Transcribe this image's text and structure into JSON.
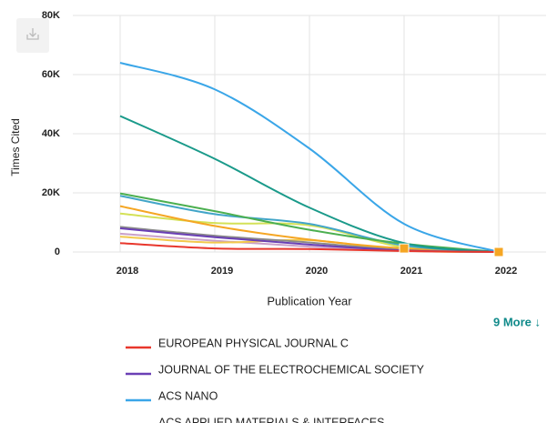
{
  "chart_data": {
    "type": "line",
    "ylabel": "Times Cited",
    "xlabel": "Publication Year",
    "xlim": [
      2017.5,
      2022.5
    ],
    "xticks": [
      2018,
      2019,
      2020,
      2021,
      2022
    ],
    "ylim": [
      0,
      80000
    ],
    "yticks": [
      {
        "value": 0,
        "label": "0"
      },
      {
        "value": 20000,
        "label": "20K"
      },
      {
        "value": 40000,
        "label": "40K"
      },
      {
        "value": 60000,
        "label": "60K"
      },
      {
        "value": 80000,
        "label": "80K"
      }
    ],
    "grid": true,
    "x": [
      2018,
      2019,
      2020,
      2021,
      2022
    ],
    "more_label": "9 More ↓",
    "series": [
      {
        "name": "EUROPEAN PHYSICAL JOURNAL C",
        "color": "#e8372c",
        "values": [
          3000,
          1200,
          1000,
          300,
          0
        ]
      },
      {
        "name": "JOURNAL OF THE ELECTROCHEMICAL SOCIETY",
        "color": "#6a3fb5",
        "values": [
          8000,
          5000,
          2500,
          500,
          0
        ]
      },
      {
        "name": "ACS NANO",
        "color": "#3aa6e8",
        "values": [
          64000,
          55000,
          35000,
          9500,
          0
        ]
      },
      {
        "name": "ACS APPLIED MATERIALS & INTERFACES",
        "color": "#8a8a8a",
        "values": [
          8500,
          5500,
          3200,
          600,
          0
        ]
      },
      {
        "color": "#1a9a8a",
        "values": [
          46000,
          31500,
          15000,
          3000,
          0
        ]
      },
      {
        "color": "#4caf50",
        "values": [
          19800,
          13800,
          7500,
          2800,
          0
        ]
      },
      {
        "color": "#42a5c8",
        "values": [
          19000,
          12800,
          9500,
          2200,
          0
        ]
      },
      {
        "color": "#f5a623",
        "markers": true,
        "values": [
          15500,
          8800,
          4200,
          1200,
          0
        ]
      },
      {
        "color": "#d4e157",
        "values": [
          13000,
          9800,
          9000,
          1600,
          0
        ]
      },
      {
        "color": "#f2c94c",
        "values": [
          5200,
          3200,
          4000,
          500,
          0
        ]
      },
      {
        "color": "#c9a0c9",
        "values": [
          6200,
          3800,
          1800,
          400,
          0
        ]
      }
    ]
  }
}
